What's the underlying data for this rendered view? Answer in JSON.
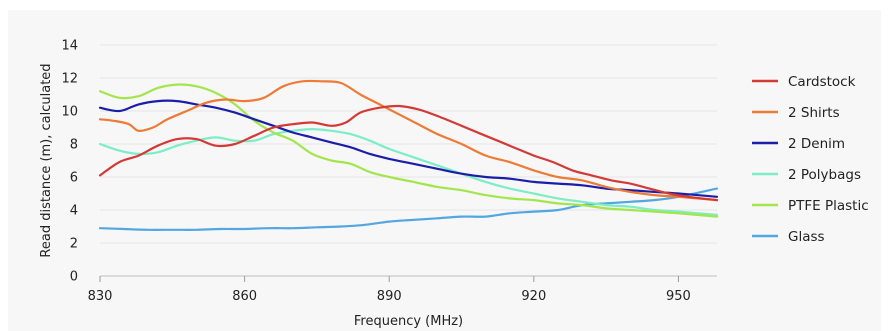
{
  "chart_data": {
    "type": "line",
    "title": "",
    "xlabel": "Frequency (MHz)",
    "ylabel": "Read distance (m), calculated",
    "xlim": [
      830,
      958
    ],
    "ylim": [
      0,
      14
    ],
    "xticks": [
      830,
      860,
      890,
      920,
      950
    ],
    "yticks": [
      0,
      2,
      4,
      6,
      8,
      10,
      12,
      14
    ],
    "grid": "horizontal",
    "legend": "right",
    "series": [
      {
        "name": "Cardstock",
        "color": "#d43a35",
        "points": [
          [
            830,
            6.1
          ],
          [
            834,
            6.9
          ],
          [
            838,
            7.3
          ],
          [
            842,
            7.9
          ],
          [
            846,
            8.3
          ],
          [
            850,
            8.3
          ],
          [
            854,
            7.9
          ],
          [
            858,
            8.0
          ],
          [
            862,
            8.5
          ],
          [
            866,
            9.0
          ],
          [
            870,
            9.2
          ],
          [
            874,
            9.3
          ],
          [
            878,
            9.1
          ],
          [
            881,
            9.3
          ],
          [
            884,
            9.9
          ],
          [
            888,
            10.2
          ],
          [
            892,
            10.3
          ],
          [
            896,
            10.1
          ],
          [
            900,
            9.7
          ],
          [
            905,
            9.1
          ],
          [
            910,
            8.5
          ],
          [
            915,
            7.9
          ],
          [
            920,
            7.3
          ],
          [
            924,
            6.9
          ],
          [
            928,
            6.4
          ],
          [
            932,
            6.1
          ],
          [
            936,
            5.8
          ],
          [
            940,
            5.6
          ],
          [
            944,
            5.3
          ],
          [
            948,
            5.0
          ],
          [
            952,
            4.8
          ],
          [
            958,
            4.6
          ]
        ]
      },
      {
        "name": "2 Shirts",
        "color": "#ee7a35",
        "points": [
          [
            830,
            9.5
          ],
          [
            833,
            9.4
          ],
          [
            836,
            9.2
          ],
          [
            838,
            8.8
          ],
          [
            841,
            9.0
          ],
          [
            844,
            9.5
          ],
          [
            848,
            10.0
          ],
          [
            852,
            10.5
          ],
          [
            856,
            10.7
          ],
          [
            860,
            10.6
          ],
          [
            864,
            10.8
          ],
          [
            868,
            11.5
          ],
          [
            872,
            11.8
          ],
          [
            876,
            11.8
          ],
          [
            880,
            11.7
          ],
          [
            884,
            11.0
          ],
          [
            888,
            10.4
          ],
          [
            892,
            9.8
          ],
          [
            896,
            9.2
          ],
          [
            900,
            8.6
          ],
          [
            905,
            8.0
          ],
          [
            910,
            7.3
          ],
          [
            915,
            6.9
          ],
          [
            920,
            6.4
          ],
          [
            925,
            6.0
          ],
          [
            930,
            5.8
          ],
          [
            935,
            5.4
          ],
          [
            940,
            5.1
          ],
          [
            945,
            4.9
          ],
          [
            950,
            4.8
          ],
          [
            958,
            4.6
          ]
        ]
      },
      {
        "name": "2 Denim",
        "color": "#1a1fa8",
        "points": [
          [
            830,
            10.2
          ],
          [
            834,
            10.0
          ],
          [
            838,
            10.4
          ],
          [
            842,
            10.6
          ],
          [
            846,
            10.6
          ],
          [
            850,
            10.4
          ],
          [
            854,
            10.2
          ],
          [
            858,
            9.9
          ],
          [
            862,
            9.5
          ],
          [
            866,
            9.1
          ],
          [
            870,
            8.7
          ],
          [
            874,
            8.4
          ],
          [
            878,
            8.1
          ],
          [
            882,
            7.8
          ],
          [
            886,
            7.4
          ],
          [
            890,
            7.1
          ],
          [
            895,
            6.8
          ],
          [
            900,
            6.5
          ],
          [
            905,
            6.2
          ],
          [
            910,
            6.0
          ],
          [
            915,
            5.9
          ],
          [
            920,
            5.7
          ],
          [
            925,
            5.6
          ],
          [
            930,
            5.5
          ],
          [
            935,
            5.3
          ],
          [
            940,
            5.2
          ],
          [
            945,
            5.1
          ],
          [
            950,
            5.0
          ],
          [
            958,
            4.8
          ]
        ]
      },
      {
        "name": "2 Polybags",
        "color": "#7dedc6",
        "points": [
          [
            830,
            8.0
          ],
          [
            834,
            7.6
          ],
          [
            838,
            7.4
          ],
          [
            842,
            7.5
          ],
          [
            846,
            7.9
          ],
          [
            850,
            8.2
          ],
          [
            854,
            8.4
          ],
          [
            858,
            8.2
          ],
          [
            862,
            8.2
          ],
          [
            866,
            8.6
          ],
          [
            870,
            8.8
          ],
          [
            874,
            8.9
          ],
          [
            878,
            8.8
          ],
          [
            882,
            8.6
          ],
          [
            886,
            8.2
          ],
          [
            890,
            7.7
          ],
          [
            895,
            7.2
          ],
          [
            900,
            6.7
          ],
          [
            905,
            6.2
          ],
          [
            910,
            5.7
          ],
          [
            915,
            5.3
          ],
          [
            920,
            5.0
          ],
          [
            925,
            4.7
          ],
          [
            930,
            4.5
          ],
          [
            935,
            4.3
          ],
          [
            940,
            4.2
          ],
          [
            945,
            4.0
          ],
          [
            950,
            3.9
          ],
          [
            958,
            3.7
          ]
        ]
      },
      {
        "name": "PTFE Plastic",
        "color": "#a2e64c",
        "points": [
          [
            830,
            11.2
          ],
          [
            834,
            10.8
          ],
          [
            838,
            10.9
          ],
          [
            842,
            11.4
          ],
          [
            846,
            11.6
          ],
          [
            850,
            11.5
          ],
          [
            854,
            11.1
          ],
          [
            858,
            10.4
          ],
          [
            862,
            9.4
          ],
          [
            866,
            8.7
          ],
          [
            870,
            8.2
          ],
          [
            874,
            7.4
          ],
          [
            878,
            7.0
          ],
          [
            882,
            6.8
          ],
          [
            886,
            6.3
          ],
          [
            890,
            6.0
          ],
          [
            895,
            5.7
          ],
          [
            900,
            5.4
          ],
          [
            905,
            5.2
          ],
          [
            910,
            4.9
          ],
          [
            915,
            4.7
          ],
          [
            920,
            4.6
          ],
          [
            925,
            4.4
          ],
          [
            930,
            4.3
          ],
          [
            935,
            4.1
          ],
          [
            940,
            4.0
          ],
          [
            945,
            3.9
          ],
          [
            950,
            3.8
          ],
          [
            958,
            3.6
          ]
        ]
      },
      {
        "name": "Glass",
        "color": "#53a7e0",
        "points": [
          [
            830,
            2.9
          ],
          [
            835,
            2.85
          ],
          [
            840,
            2.8
          ],
          [
            845,
            2.8
          ],
          [
            850,
            2.8
          ],
          [
            855,
            2.85
          ],
          [
            860,
            2.85
          ],
          [
            865,
            2.9
          ],
          [
            870,
            2.9
          ],
          [
            875,
            2.95
          ],
          [
            880,
            3.0
          ],
          [
            885,
            3.1
          ],
          [
            890,
            3.3
          ],
          [
            895,
            3.4
          ],
          [
            900,
            3.5
          ],
          [
            905,
            3.6
          ],
          [
            910,
            3.6
          ],
          [
            915,
            3.8
          ],
          [
            920,
            3.9
          ],
          [
            925,
            4.0
          ],
          [
            930,
            4.3
          ],
          [
            935,
            4.4
          ],
          [
            940,
            4.5
          ],
          [
            945,
            4.6
          ],
          [
            950,
            4.8
          ],
          [
            958,
            5.3
          ]
        ]
      }
    ]
  }
}
